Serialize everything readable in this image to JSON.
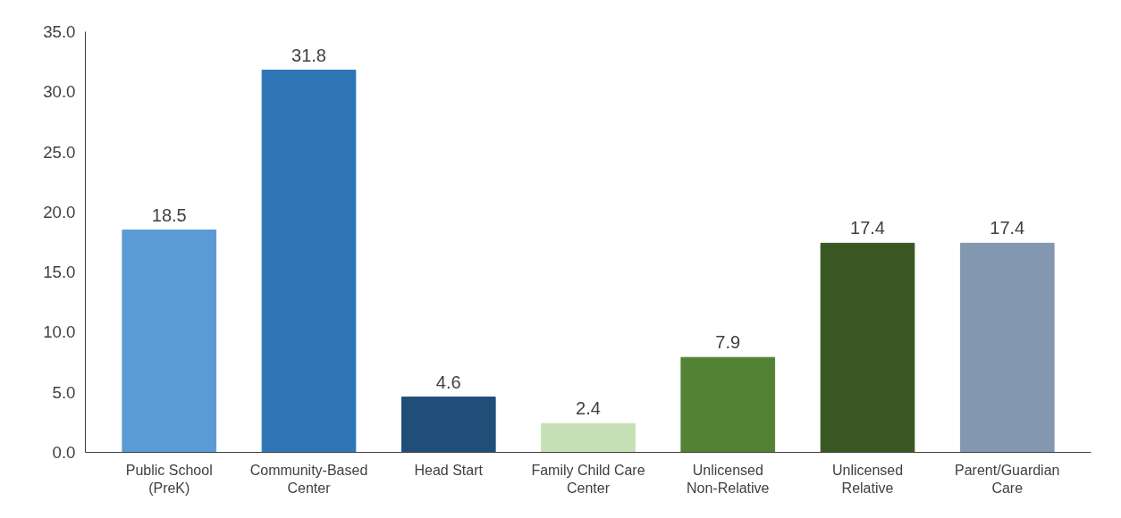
{
  "chart_data": {
    "type": "bar",
    "categories": [
      "Public School\n(PreK)",
      "Community-Based\nCenter",
      "Head Start",
      "Family Child Care\nCenter",
      "Unlicensed\nNon-Relative",
      "Unlicensed\nRelative",
      "Parent/Guardian\nCare"
    ],
    "values": [
      18.5,
      31.8,
      4.6,
      2.4,
      7.9,
      17.4,
      17.4
    ],
    "colors": [
      "#5b9bd5",
      "#2e75b6",
      "#1f4e79",
      "#c5e0b4",
      "#548235",
      "#385723",
      "#8497b0"
    ],
    "ylim": [
      0,
      35
    ],
    "yticks": [
      {
        "value": 0,
        "label": "0.0"
      },
      {
        "value": 5,
        "label": "5.0"
      },
      {
        "value": 10,
        "label": "10.0"
      },
      {
        "value": 15,
        "label": "15.0"
      },
      {
        "value": 20,
        "label": "20.0"
      },
      {
        "value": 25,
        "label": "25.0"
      },
      {
        "value": 30,
        "label": "30.0"
      },
      {
        "value": 35,
        "label": "35.0"
      }
    ],
    "data_labels": true,
    "grid": false
  }
}
